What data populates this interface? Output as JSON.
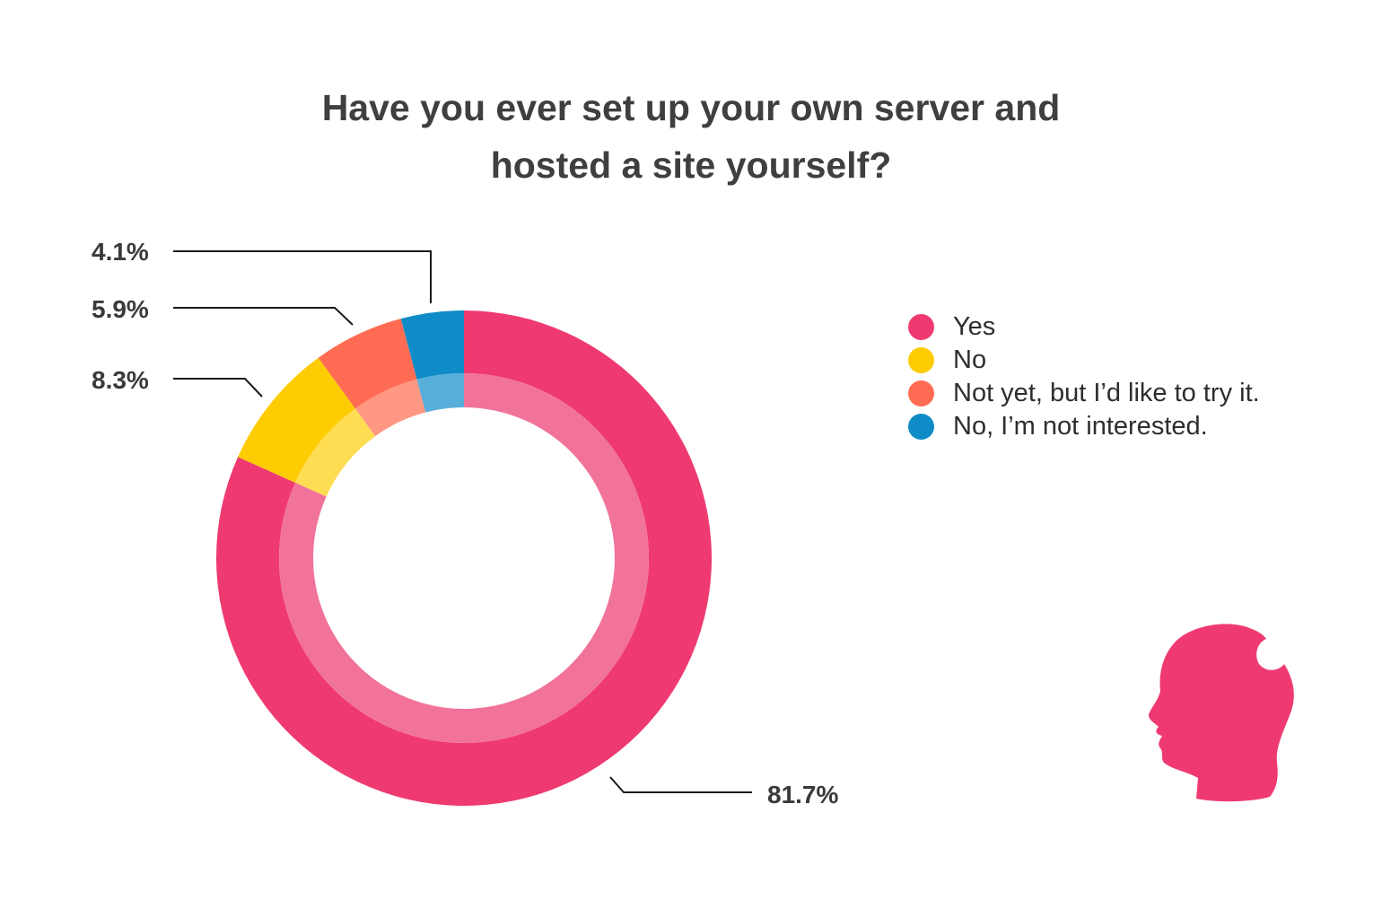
{
  "chart_data": {
    "type": "pie",
    "variant": "donut",
    "title_lines": [
      "Have you ever set up your own server and",
      "hosted a site yourself?"
    ],
    "start_angle": "12 o'clock, clockwise",
    "slices": [
      {
        "label": "Yes",
        "value": 81.7,
        "display": "81.7%",
        "color": "#ef3a71",
        "inner_color": "#f27399"
      },
      {
        "label": "No",
        "value": 8.3,
        "display": "8.3%",
        "color": "#fdcc02",
        "inner_color": "#ffdd52"
      },
      {
        "label": "Not yet, but I’d like to try it.",
        "value": 5.9,
        "display": "5.9%",
        "color": "#ff6c53",
        "inner_color": "#ff9782"
      },
      {
        "label": "No, I’m not interested.",
        "value": 4.1,
        "display": "4.1%",
        "color": "#0f8cc7",
        "inner_color": "#58aeda"
      }
    ],
    "legend": {
      "position": "right"
    }
  },
  "logo": {
    "name": "head-silhouette-icon",
    "color": "#ef3a71"
  }
}
